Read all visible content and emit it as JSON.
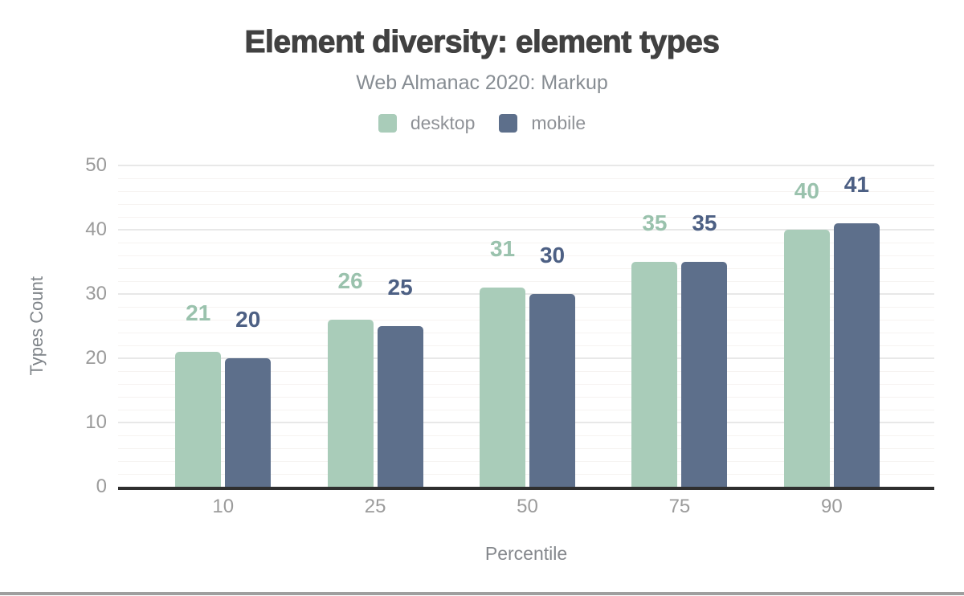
{
  "frame": {
    "bottom_strip_color": "#9f9f9f"
  },
  "chart_data": {
    "type": "bar",
    "title": "Element diversity: element types",
    "subtitle": "Web Almanac 2020: Markup",
    "categories": [
      "10",
      "25",
      "50",
      "75",
      "90"
    ],
    "series": [
      {
        "name": "desktop",
        "color": "#a9ccb9",
        "label_color": "#9ac2ad",
        "values": [
          21,
          26,
          31,
          35,
          40
        ]
      },
      {
        "name": "mobile",
        "color": "#5d6f8b",
        "label_color": "#4d6084",
        "values": [
          20,
          25,
          30,
          35,
          41
        ]
      }
    ],
    "xlabel": "Percentile",
    "ylabel": "Types Count",
    "ylim": [
      0,
      50
    ],
    "yticks": [
      0,
      10,
      20,
      30,
      40,
      50
    ],
    "grid": {
      "minor_step": 2,
      "major_step": 10,
      "minor_color": "#f6f3f1",
      "major_color": "#e8e8e8"
    },
    "legend_position": "top",
    "axis_line_color": "#2f2f2f"
  }
}
